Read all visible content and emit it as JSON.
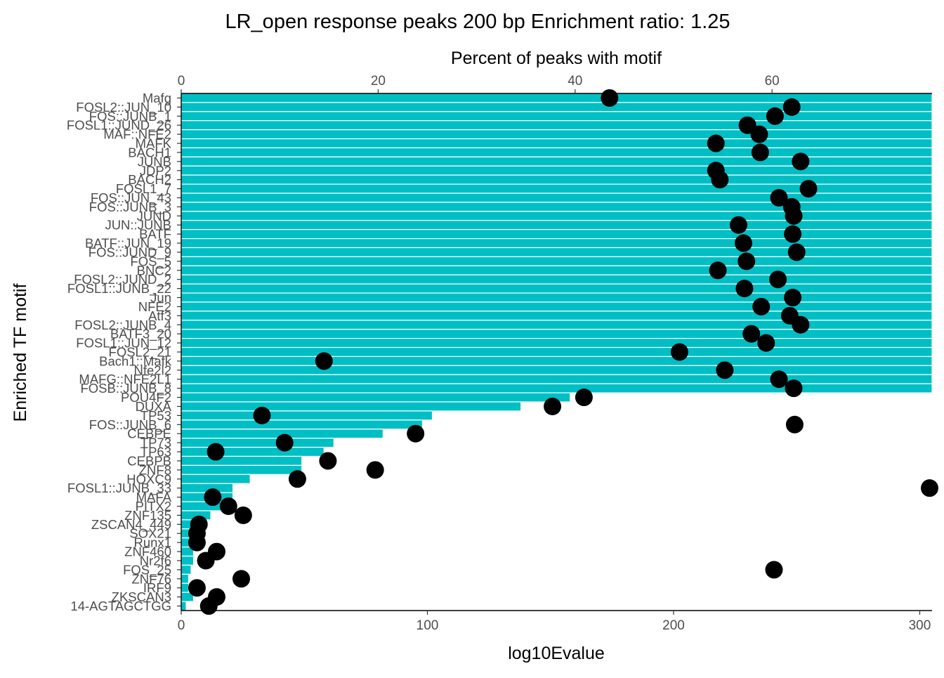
{
  "chart_data": {
    "type": "bar",
    "title": "LR_open response peaks 200 bp Enrichment ratio: 1.25",
    "xlabel": "log10Evalue",
    "x2label": "Percent of peaks with motif",
    "ylabel": "Enriched TF motif",
    "xlim": [
      0,
      305
    ],
    "x2lim": [
      0,
      76.25
    ],
    "xticks": [
      0,
      100,
      200,
      300
    ],
    "x2ticks": [
      0,
      20,
      40,
      60
    ],
    "bar_color": "#00BFC4",
    "point_color": "#000000",
    "grid": false,
    "series": [
      {
        "name": "log10Evalue",
        "kind": "bar",
        "axis": "bottom"
      },
      {
        "name": "Percent of peaks with motif",
        "kind": "point",
        "axis": "top"
      }
    ],
    "categories": [
      "Mafg",
      "FOSL2::JUN_10",
      "FOS::JUNB_1",
      "FOSL1::JUND_26",
      "MAF::NFE2",
      "MAFK",
      "BACH1",
      "JUNB",
      "JDP2",
      "BACH2",
      "FOSL1_7",
      "FOS::JUN_43",
      "FOS::JUNB_3",
      "JUND",
      "JUN::JUNB",
      "BATF",
      "BATF::JUN_19",
      "FOS::JUND_9",
      "FOS_5",
      "BNC2",
      "FOSL2::JUND_2",
      "FOSL1::JUNB_22",
      "Jun",
      "NFE2",
      "Atf3",
      "FOSL2::JUNB_4",
      "BATF3_20",
      "FOSL1::JUN_12",
      "FOSL2_21",
      "Bach1::Mafk",
      "Nfe2l2",
      "MAFG::NFE2L1",
      "FOSB::JUNB_8",
      "POU4F2",
      "DUXA",
      "TP53",
      "FOS::JUNB_6",
      "CEBPE",
      "TP73",
      "TP63",
      "CEBPB",
      "ZNF8",
      "HOXC9",
      "FOSL1::JUNB_33",
      "MAFA",
      "PITX2",
      "ZNF135",
      "ZSCAN4_449",
      "SOX21",
      "Runx1",
      "ZNF460",
      "Nr2f6",
      "FOS_25",
      "ZNF76",
      "IRF9",
      "ZKSCAN3",
      "14-AGTAGCTGG"
    ],
    "log10Evalue": [
      305,
      305,
      305,
      305,
      305,
      305,
      305,
      305,
      305,
      305,
      305,
      305,
      305,
      305,
      305,
      305,
      305,
      305,
      305,
      305,
      305,
      305,
      305,
      305,
      305,
      305,
      305,
      305,
      305,
      305,
      305,
      305,
      305,
      158,
      138,
      102,
      98,
      82,
      62,
      58,
      49,
      49,
      28,
      21,
      21,
      21,
      12,
      6,
      6,
      5,
      5,
      5,
      4,
      3,
      3,
      5,
      2
    ],
    "percent_peaks": [
      43.5,
      62.0,
      60.3,
      57.5,
      58.7,
      54.3,
      58.8,
      62.9,
      54.3,
      54.7,
      63.7,
      60.7,
      62.0,
      62.2,
      56.6,
      62.1,
      57.1,
      62.5,
      57.4,
      54.5,
      60.6,
      57.2,
      62.1,
      58.9,
      61.8,
      62.9,
      57.9,
      59.4,
      50.6,
      14.5,
      55.2,
      60.7,
      62.2,
      40.9,
      37.7,
      8.2,
      62.3,
      23.8,
      10.5,
      3.5,
      14.9,
      19.7,
      11.8,
      76.0,
      3.2,
      4.8,
      6.3,
      1.8,
      1.6,
      1.6,
      3.6,
      2.5,
      60.2,
      6.1,
      1.6,
      3.6,
      2.8
    ]
  }
}
